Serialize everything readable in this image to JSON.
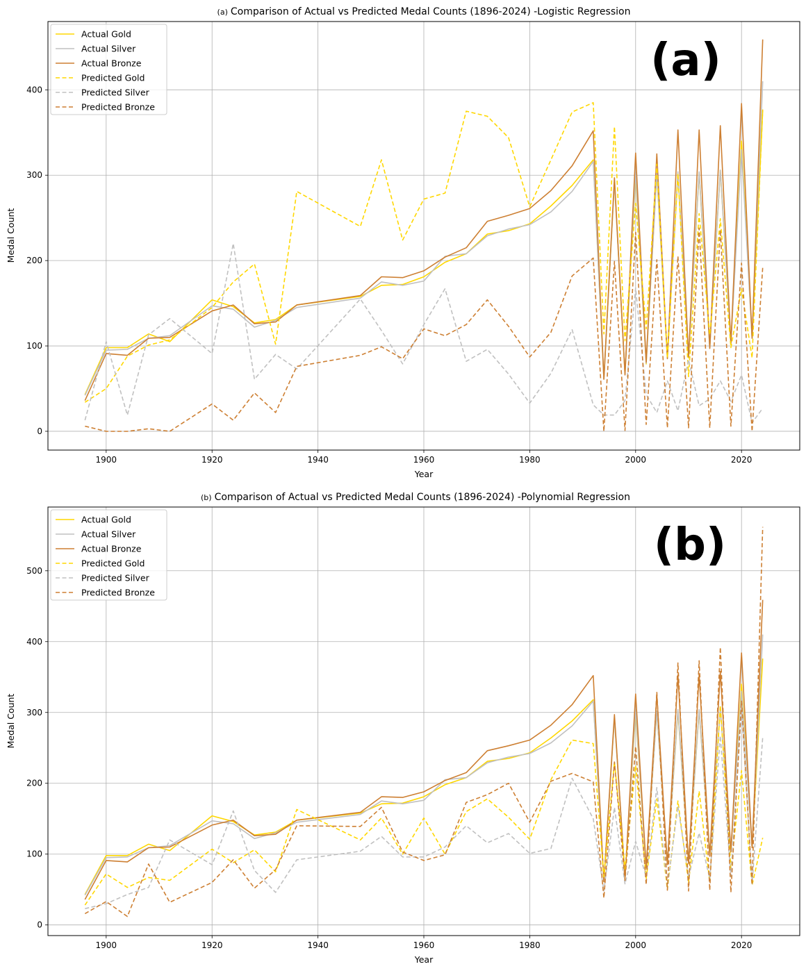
{
  "colors": {
    "gold": "#FFD700",
    "silver": "#C0C0C0",
    "bronze": "#CD7F32",
    "grid": "#b0b0b0",
    "axis": "#000000"
  },
  "chart_data": [
    {
      "type": "line",
      "panel_tag": "(a)",
      "big_label": "(a)",
      "title": "Comparison of Actual vs Predicted Medal Counts (1896-2024) -Logistic Regression",
      "xlabel": "Year",
      "ylabel": "Medal Count",
      "xlim": [
        1889,
        2031
      ],
      "ylim": [
        -22,
        480
      ],
      "xticks": [
        1900,
        1920,
        1940,
        1960,
        1980,
        2000,
        2020
      ],
      "yticks": [
        0,
        100,
        200,
        300,
        400
      ],
      "grid": true,
      "legend_position": "top-left",
      "x": [
        1896,
        1900,
        1904,
        1908,
        1912,
        1920,
        1924,
        1928,
        1932,
        1936,
        1948,
        1952,
        1956,
        1960,
        1964,
        1968,
        1972,
        1976,
        1980,
        1984,
        1988,
        1992,
        1994,
        1996,
        1998,
        2000,
        2002,
        2004,
        2006,
        2008,
        2010,
        2012,
        2014,
        2016,
        2018,
        2020,
        2022,
        2024
      ],
      "series": [
        {
          "name": "Actual Gold",
          "style": "solid",
          "color": "gold",
          "values": [
            43,
            98,
            98,
            114,
            105,
            154,
            146,
            127,
            131,
            148,
            158,
            171,
            172,
            181,
            198,
            208,
            231,
            235,
            243,
            264,
            288,
            318,
            61,
            292,
            67,
            300,
            79,
            302,
            86,
            302,
            86,
            303,
            98,
            306,
            103,
            340,
            109,
            376
          ]
        },
        {
          "name": "Actual Silver",
          "style": "solid",
          "color": "silver",
          "values": [
            42,
            95,
            96,
            109,
            112,
            147,
            143,
            122,
            130,
            145,
            156,
            175,
            171,
            176,
            205,
            208,
            229,
            237,
            242,
            257,
            281,
            316,
            61,
            292,
            68,
            304,
            80,
            302,
            87,
            304,
            87,
            304,
            98,
            306,
            103,
            330,
            109,
            410
          ]
        },
        {
          "name": "Actual Bronze",
          "style": "solid",
          "color": "bronze",
          "values": [
            36,
            91,
            89,
            109,
            110,
            141,
            148,
            126,
            128,
            148,
            159,
            181,
            180,
            188,
            204,
            215,
            246,
            253,
            261,
            282,
            311,
            352,
            61,
            297,
            66,
            326,
            81,
            325,
            85,
            353,
            87,
            353,
            97,
            358,
            103,
            384,
            109,
            459
          ]
        },
        {
          "name": "Predicted Gold",
          "style": "dashed",
          "color": "gold",
          "values": [
            34,
            50,
            88,
            101,
            107,
            145,
            175,
            196,
            102,
            281,
            240,
            318,
            224,
            272,
            279,
            375,
            369,
            344,
            263,
            318,
            374,
            385,
            114,
            357,
            106,
            267,
            120,
            313,
            86,
            302,
            64,
            255,
            113,
            249,
            98,
            167,
            86,
            377
          ]
        },
        {
          "name": "Predicted Silver",
          "style": "dashed",
          "color": "silver",
          "values": [
            13,
            105,
            19,
            113,
            132,
            91,
            220,
            61,
            90,
            73,
            155,
            118,
            79,
            125,
            167,
            82,
            96,
            67,
            33,
            68,
            119,
            31,
            19,
            19,
            36,
            168,
            43,
            22,
            59,
            24,
            84,
            30,
            38,
            59,
            35,
            66,
            10,
            27
          ]
        },
        {
          "name": "Predicted Bronze",
          "style": "dashed",
          "color": "bronze",
          "values": [
            6,
            0,
            0,
            3,
            0,
            32,
            13,
            45,
            22,
            76,
            89,
            99,
            85,
            120,
            112,
            125,
            154,
            123,
            87,
            116,
            182,
            203,
            0,
            199,
            1,
            233,
            8,
            201,
            4,
            205,
            4,
            238,
            4,
            236,
            6,
            197,
            0,
            192
          ]
        }
      ]
    },
    {
      "type": "line",
      "panel_tag": "(b)",
      "big_label": "(b)",
      "title": "Comparison of Actual vs Predicted Medal Counts (1896-2024) -Polynomial Regression",
      "xlabel": "Year",
      "ylabel": "Medal Count",
      "xlim": [
        1889,
        2031
      ],
      "ylim": [
        -15,
        590
      ],
      "xticks": [
        1900,
        1920,
        1940,
        1960,
        1980,
        2000,
        2020
      ],
      "yticks": [
        0,
        100,
        200,
        300,
        400,
        500
      ],
      "grid": true,
      "legend_position": "top-left",
      "x": [
        1896,
        1900,
        1904,
        1908,
        1912,
        1920,
        1924,
        1928,
        1932,
        1936,
        1948,
        1952,
        1956,
        1960,
        1964,
        1968,
        1972,
        1976,
        1980,
        1984,
        1988,
        1992,
        1994,
        1996,
        1998,
        2000,
        2002,
        2004,
        2006,
        2008,
        2010,
        2012,
        2014,
        2016,
        2018,
        2020,
        2022,
        2024
      ],
      "series": [
        {
          "name": "Actual Gold",
          "style": "solid",
          "color": "gold",
          "values": [
            43,
            98,
            98,
            114,
            105,
            154,
            146,
            127,
            131,
            148,
            158,
            171,
            172,
            181,
            198,
            208,
            231,
            235,
            243,
            264,
            288,
            318,
            61,
            292,
            67,
            300,
            79,
            302,
            86,
            302,
            86,
            303,
            98,
            306,
            103,
            340,
            109,
            376
          ]
        },
        {
          "name": "Actual Silver",
          "style": "solid",
          "color": "silver",
          "values": [
            42,
            95,
            96,
            109,
            112,
            147,
            143,
            122,
            130,
            145,
            156,
            175,
            171,
            176,
            205,
            208,
            229,
            237,
            242,
            257,
            281,
            316,
            61,
            292,
            68,
            304,
            80,
            302,
            87,
            304,
            87,
            304,
            98,
            306,
            103,
            330,
            109,
            410
          ]
        },
        {
          "name": "Actual Bronze",
          "style": "solid",
          "color": "bronze",
          "values": [
            36,
            91,
            89,
            109,
            110,
            141,
            148,
            126,
            128,
            148,
            159,
            181,
            180,
            188,
            204,
            215,
            246,
            253,
            261,
            282,
            311,
            352,
            61,
            297,
            66,
            326,
            81,
            325,
            85,
            353,
            87,
            353,
            97,
            358,
            103,
            384,
            109,
            459
          ]
        },
        {
          "name": "Predicted Gold",
          "style": "dashed",
          "color": "gold",
          "values": [
            28,
            72,
            53,
            67,
            63,
            107,
            88,
            106,
            75,
            163,
            120,
            151,
            100,
            151,
            100,
            160,
            178,
            152,
            121,
            205,
            261,
            256,
            68,
            230,
            79,
            225,
            66,
            178,
            50,
            175,
            60,
            189,
            60,
            310,
            80,
            218,
            56,
            123
          ]
        },
        {
          "name": "Predicted Silver",
          "style": "dashed",
          "color": "silver",
          "values": [
            23,
            30,
            43,
            53,
            120,
            85,
            161,
            77,
            46,
            92,
            104,
            125,
            96,
            96,
            110,
            140,
            116,
            129,
            101,
            108,
            207,
            150,
            48,
            166,
            58,
            118,
            68,
            194,
            54,
            168,
            67,
            130,
            65,
            267,
            68,
            306,
            58,
            265
          ]
        },
        {
          "name": "Predicted Bronze",
          "style": "dashed",
          "color": "bronze",
          "values": [
            16,
            33,
            12,
            86,
            32,
            60,
            92,
            52,
            78,
            140,
            139,
            166,
            103,
            91,
            99,
            173,
            184,
            200,
            145,
            203,
            214,
            202,
            38,
            230,
            63,
            252,
            57,
            329,
            49,
            370,
            48,
            373,
            49,
            392,
            46,
            316,
            57,
            562
          ]
        }
      ]
    }
  ]
}
